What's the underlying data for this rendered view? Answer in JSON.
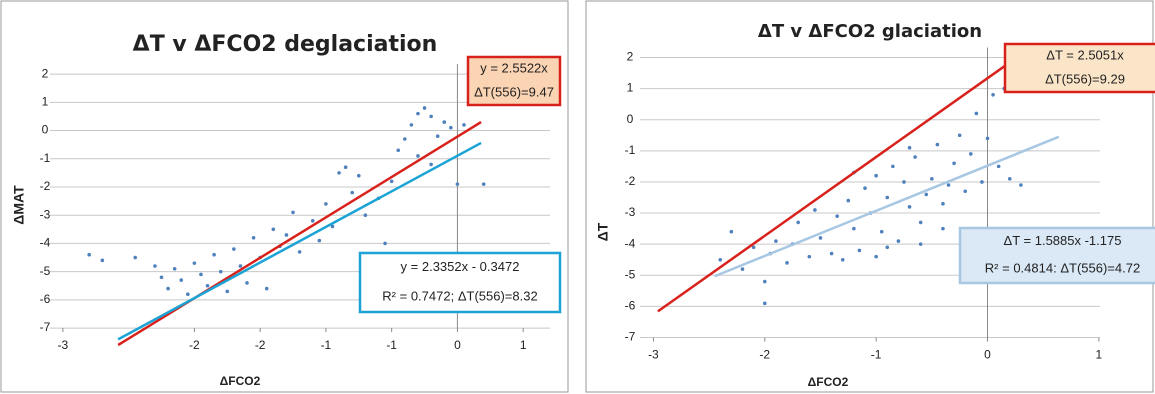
{
  "chart_data": [
    {
      "type": "scatter",
      "title": "ΔT v ΔFCO2  deglaciation",
      "x_label": "ΔFCO2",
      "y_label": "ΔMAT",
      "xlim": [
        -3.25,
        0.78
      ],
      "ylim": [
        -7.6,
        2.5
      ],
      "xticks": [
        -3,
        -2,
        {
          "value": -1.5,
          "label": "-2"
        },
        -1,
        {
          "value": -0.5,
          "label": "-1"
        },
        0,
        {
          "value": 0.5,
          "label": "1"
        }
      ],
      "yticks": [
        2,
        1,
        0,
        -1,
        -2,
        -3,
        -4,
        -5,
        -6,
        -7
      ],
      "grid": true,
      "series": [
        {
          "type": "scatter",
          "color": "#4f81bd",
          "x": [
            -2.8,
            -2.7,
            -2.45,
            -2.3,
            -2.25,
            -2.2,
            -2.15,
            -2.1,
            -2.05,
            -2.0,
            -1.95,
            -1.9,
            -1.85,
            -1.8,
            -1.75,
            -1.7,
            -1.65,
            -1.6,
            -1.55,
            -1.5,
            -1.45,
            -1.4,
            -1.35,
            -1.3,
            -1.25,
            -1.2,
            -1.1,
            -1.05,
            -1.0,
            -0.95,
            -0.9,
            -0.85,
            -0.8,
            -0.75,
            -0.7,
            -0.6,
            -0.55,
            -0.5,
            -0.45,
            -0.4,
            -0.35,
            -0.3,
            -0.3,
            -0.25,
            -0.2,
            -0.2,
            -0.15,
            -0.1,
            -0.05,
            0.0,
            0.05,
            0.2
          ],
          "values": [
            -4.4,
            -4.6,
            -4.5,
            -4.8,
            -5.2,
            -5.6,
            -4.9,
            -5.3,
            -5.8,
            -4.7,
            -5.1,
            -5.5,
            -4.4,
            -5.0,
            -5.7,
            -4.2,
            -4.8,
            -5.4,
            -3.8,
            -4.5,
            -5.6,
            -3.5,
            -4.1,
            -3.7,
            -2.9,
            -4.3,
            -3.2,
            -3.9,
            -2.6,
            -3.4,
            -1.5,
            -1.3,
            -2.2,
            -1.6,
            -3.0,
            -2.4,
            -4.0,
            -1.8,
            -0.7,
            -0.3,
            0.2,
            0.6,
            -0.9,
            0.8,
            0.5,
            -1.2,
            -0.2,
            0.3,
            0.1,
            -1.9,
            0.2,
            -1.9
          ]
        },
        {
          "type": "line",
          "color": "#d9211c",
          "x": [
            -2.58,
            0.18
          ],
          "values": [
            -7.6,
            0.3
          ]
        },
        {
          "type": "line",
          "color": "#1aa3d4",
          "x": [
            -2.58,
            0.18
          ],
          "values": [
            -7.4,
            -0.44
          ]
        }
      ],
      "annotations": [
        {
          "lines": [
            "y = 2.5522x",
            "ΔT(556)=9.47"
          ],
          "border": "#d9211c",
          "fill": "#fbd4b4"
        },
        {
          "lines": [
            "y = 2.3352x - 0.3472",
            "R² = 0.7472; ΔT(556)=8.32"
          ],
          "border": "#1aa3d4",
          "fill": "#ffffff"
        }
      ]
    },
    {
      "type": "scatter",
      "title": "ΔT v ΔFCO2  glaciation",
      "x_label": "ΔFCO2",
      "y_label": "ΔT",
      "xlim": [
        -3.3,
        1.1
      ],
      "ylim": [
        -7.4,
        2.4
      ],
      "xticks": [
        -3,
        -2,
        -1,
        0,
        1
      ],
      "yticks": [
        2,
        1,
        0,
        -1,
        -2,
        -3,
        -4,
        -5,
        -6,
        -7
      ],
      "grid": true,
      "series": [
        {
          "type": "scatter",
          "color": "#4f81bd",
          "x": [
            -2.4,
            -2.3,
            -2.2,
            -2.1,
            -2.0,
            -1.95,
            -1.9,
            -1.8,
            -1.75,
            -1.7,
            -1.6,
            -1.55,
            -1.5,
            -1.4,
            -1.35,
            -1.3,
            -1.25,
            -1.2,
            -1.15,
            -1.1,
            -1.05,
            -1.0,
            -0.95,
            -0.9,
            -0.85,
            -0.8,
            -0.75,
            -0.7,
            -0.65,
            -0.6,
            -0.55,
            -0.5,
            -0.45,
            -0.4,
            -0.35,
            -0.3,
            -0.25,
            -0.2,
            -0.15,
            -0.1,
            -0.05,
            0.0,
            0.05,
            0.1,
            0.15,
            0.2,
            0.3,
            -0.6,
            -0.9,
            -1.2,
            -0.4,
            -0.7,
            -2.0,
            -1.0
          ],
          "values": [
            -4.5,
            -3.6,
            -4.8,
            -4.1,
            -5.9,
            -4.3,
            -3.9,
            -4.6,
            -4.0,
            -3.3,
            -4.4,
            -2.9,
            -3.8,
            -4.3,
            -3.1,
            -4.5,
            -2.6,
            -3.5,
            -4.2,
            -2.2,
            -3.0,
            -1.8,
            -3.6,
            -2.5,
            -1.5,
            -3.9,
            -2.0,
            -2.8,
            -1.2,
            -3.3,
            -2.4,
            -1.9,
            -0.8,
            -2.7,
            -2.1,
            -1.4,
            -0.5,
            -2.3,
            -1.1,
            0.2,
            -2.0,
            -0.6,
            0.8,
            -1.5,
            1.0,
            -1.9,
            -2.1,
            -4.0,
            -4.1,
            -1.7,
            -3.5,
            -0.9,
            -5.2,
            -4.4
          ]
        },
        {
          "type": "line",
          "color": "#d9211c",
          "x": [
            -2.96,
            0.24
          ],
          "values": [
            -6.16,
            1.94
          ]
        },
        {
          "type": "line",
          "color": "#a7c7e3",
          "x": [
            -2.45,
            0.64
          ],
          "values": [
            -5.03,
            -0.55
          ]
        }
      ],
      "annotations": [
        {
          "lines": [
            "ΔT = 2.5051x",
            "ΔT(556)=9.29"
          ],
          "border": "#d9211c",
          "fill": "#fbe5c8"
        },
        {
          "lines": [
            "ΔT = 1.5885x -1.175",
            "R² = 0.4814: ΔT(556)=4.72"
          ],
          "border": "#a7c7e3",
          "fill": "#dbe8f5"
        }
      ]
    }
  ]
}
